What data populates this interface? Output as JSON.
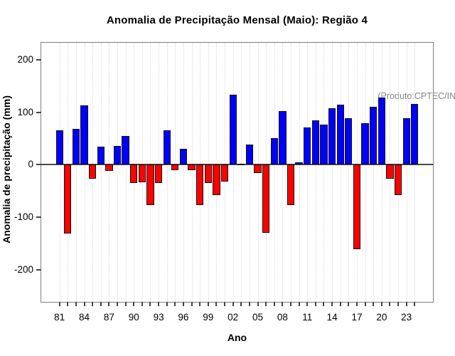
{
  "title": "Anomalia de Precipitação Mensal (Maio): Região 4",
  "annotation": "(Produto:CPTEC/INPE)",
  "axes": {
    "x_label": "Ano",
    "y_label": "Anomalia de precipitação (mm)",
    "y_ticks": [
      200,
      100,
      0,
      -100,
      -200
    ],
    "x_tick_labels": [
      "81",
      "84",
      "87",
      "90",
      "93",
      "96",
      "99",
      "02",
      "05",
      "08",
      "11",
      "14",
      "17",
      "20",
      "23"
    ]
  },
  "colors": {
    "positive_bar": "#0000ff",
    "negative_bar": "#ff0000",
    "annotation_text": "#858585"
  },
  "chart_data": {
    "type": "bar",
    "title": "Anomalia de Precipitação Mensal (Maio): Região 4",
    "xlabel": "Ano",
    "ylabel": "Anomalia de precipitação (mm)",
    "x": [
      "81",
      "82",
      "83",
      "84",
      "85",
      "86",
      "87",
      "88",
      "89",
      "90",
      "91",
      "92",
      "93",
      "94",
      "95",
      "96",
      "97",
      "98",
      "99",
      "00",
      "01",
      "02",
      "03",
      "04",
      "05",
      "06",
      "07",
      "08",
      "09",
      "10",
      "11",
      "12",
      "13",
      "14",
      "15",
      "16",
      "17",
      "18",
      "19",
      "20",
      "21",
      "22",
      "23",
      "24"
    ],
    "values": [
      66,
      -131,
      68,
      113,
      -26,
      35,
      -12,
      36,
      55,
      -35,
      -33,
      -77,
      -34,
      65,
      -10,
      30,
      -10,
      -76,
      -35,
      -57,
      -32,
      133,
      2,
      38,
      -16,
      -130,
      51,
      102,
      -77,
      4,
      71,
      85,
      77,
      108,
      114,
      89,
      -160,
      79,
      110,
      128,
      -26,
      -58,
      88,
      116
    ],
    "ylim": [
      -258,
      232
    ],
    "grid": "vertical-dotted",
    "legend": null,
    "positive_color": "#0000ff",
    "negative_color": "#ff0000",
    "annotation": "(Produto:CPTEC/INPE)"
  }
}
